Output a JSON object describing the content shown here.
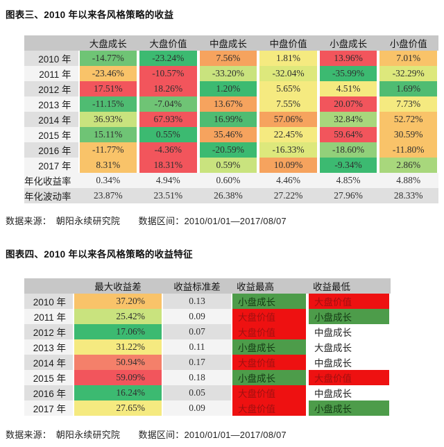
{
  "palette": {
    "red": "#f2555c",
    "salmon": "#f4806a",
    "orange": "#f6a35e",
    "lightOrange": "#f9c369",
    "yellow": "#f5ea80",
    "yellowGreen": "#dde87c",
    "limeGreen": "#c9e37e",
    "lightGreen": "#a8d77c",
    "softGreen": "#92d07a",
    "green": "#6fc475",
    "midGreen": "#4fbc72",
    "emerald": "#3cba71",
    "nameGreen": "#4d9c4a",
    "nameRed": "#ee1111",
    "nameGreenText": "#143a14",
    "nameRedText": "#a01010",
    "headerGray": "#c7c7c7",
    "stripeDark": "#dfdfdf",
    "stripeLight": "#f4f4f4",
    "plainWhite": "#ffffff"
  },
  "table1": {
    "title": "图表三、2010 年以来各风格策略的收益",
    "columns": [
      "大盘成长",
      "大盘价值",
      "中盘成长",
      "中盘价值",
      "小盘成长",
      "小盘价值"
    ],
    "rows": [
      {
        "label": "2010 年",
        "stripe": "dark",
        "cells": [
          {
            "v": "-14.77%",
            "c": "green"
          },
          {
            "v": "-23.24%",
            "c": "emerald"
          },
          {
            "v": "7.56%",
            "c": "orange"
          },
          {
            "v": "1.81%",
            "c": "yellow"
          },
          {
            "v": "13.96%",
            "c": "red"
          },
          {
            "v": "7.01%",
            "c": "lightOrange"
          }
        ]
      },
      {
        "label": "2011 年",
        "stripe": "light",
        "cells": [
          {
            "v": "-23.46%",
            "c": "lightOrange"
          },
          {
            "v": "-10.57%",
            "c": "red"
          },
          {
            "v": "-33.20%",
            "c": "limeGreen"
          },
          {
            "v": "-32.04%",
            "c": "yellowGreen"
          },
          {
            "v": "-35.99%",
            "c": "emerald"
          },
          {
            "v": "-32.29%",
            "c": "yellowGreen"
          }
        ]
      },
      {
        "label": "2012 年",
        "stripe": "dark",
        "cells": [
          {
            "v": "17.51%",
            "c": "red"
          },
          {
            "v": "18.26%",
            "c": "red"
          },
          {
            "v": "1.20%",
            "c": "emerald"
          },
          {
            "v": "5.65%",
            "c": "yellow"
          },
          {
            "v": "4.51%",
            "c": "yellow"
          },
          {
            "v": "1.69%",
            "c": "midGreen"
          }
        ]
      },
      {
        "label": "2013 年",
        "stripe": "light",
        "cells": [
          {
            "v": "-11.15%",
            "c": "midGreen"
          },
          {
            "v": "-7.04%",
            "c": "green"
          },
          {
            "v": "13.67%",
            "c": "orange"
          },
          {
            "v": "7.55%",
            "c": "yellow"
          },
          {
            "v": "20.07%",
            "c": "red"
          },
          {
            "v": "7.73%",
            "c": "yellow"
          }
        ]
      },
      {
        "label": "2014 年",
        "stripe": "dark",
        "cells": [
          {
            "v": "36.93%",
            "c": "limeGreen"
          },
          {
            "v": "67.93%",
            "c": "red"
          },
          {
            "v": "16.99%",
            "c": "midGreen"
          },
          {
            "v": "57.06%",
            "c": "orange"
          },
          {
            "v": "32.84%",
            "c": "lightGreen"
          },
          {
            "v": "52.72%",
            "c": "lightOrange"
          }
        ]
      },
      {
        "label": "2015 年",
        "stripe": "light",
        "cells": [
          {
            "v": "15.11%",
            "c": "green"
          },
          {
            "v": "0.55%",
            "c": "emerald"
          },
          {
            "v": "35.46%",
            "c": "orange"
          },
          {
            "v": "22.45%",
            "c": "yellow"
          },
          {
            "v": "59.64%",
            "c": "red"
          },
          {
            "v": "30.59%",
            "c": "lightOrange"
          }
        ]
      },
      {
        "label": "2016 年",
        "stripe": "dark",
        "cells": [
          {
            "v": "-11.77%",
            "c": "lightOrange"
          },
          {
            "v": "-4.36%",
            "c": "red"
          },
          {
            "v": "-20.59%",
            "c": "emerald"
          },
          {
            "v": "-16.33%",
            "c": "yellowGreen"
          },
          {
            "v": "-18.60%",
            "c": "softGreen"
          },
          {
            "v": "-11.80%",
            "c": "lightOrange"
          }
        ]
      },
      {
        "label": "2017 年",
        "stripe": "light",
        "cells": [
          {
            "v": "8.31%",
            "c": "lightOrange"
          },
          {
            "v": "18.31%",
            "c": "red"
          },
          {
            "v": "0.59%",
            "c": "limeGreen"
          },
          {
            "v": "10.09%",
            "c": "orange"
          },
          {
            "v": "-9.34%",
            "c": "emerald"
          },
          {
            "v": "2.86%",
            "c": "lightGreen"
          }
        ]
      },
      {
        "label": "年化收益率",
        "stripe": "light",
        "cells": [
          {
            "v": "0.34%",
            "c": "none"
          },
          {
            "v": "4.94%",
            "c": "none"
          },
          {
            "v": "0.60%",
            "c": "none"
          },
          {
            "v": "4.46%",
            "c": "none"
          },
          {
            "v": "4.85%",
            "c": "none"
          },
          {
            "v": "4.88%",
            "c": "none"
          }
        ]
      },
      {
        "label": "年化波动率",
        "stripe": "dark",
        "cells": [
          {
            "v": "23.87%",
            "c": "none"
          },
          {
            "v": "23.51%",
            "c": "none"
          },
          {
            "v": "26.38%",
            "c": "none"
          },
          {
            "v": "27.22%",
            "c": "none"
          },
          {
            "v": "27.96%",
            "c": "none"
          },
          {
            "v": "28.33%",
            "c": "none"
          }
        ]
      }
    ],
    "source": "数据来源：　朝阳永续研究院　　数据区间：2010/01/01—2017/08/07"
  },
  "table2": {
    "title": "图表四、2010 年以来各风格策略的收益特征",
    "columns": [
      "最大收益差",
      "收益标准差",
      "收益最高",
      "收益最低"
    ],
    "rows": [
      {
        "label": "2010 年",
        "stripe": "dark",
        "max_diff": {
          "v": "37.20%",
          "c": "lightOrange"
        },
        "std": "0.13",
        "highest": {
          "v": "小盘成长",
          "c": "nameGreen"
        },
        "lowest": {
          "v": "大盘价值",
          "c": "nameRed"
        }
      },
      {
        "label": "2011 年",
        "stripe": "light",
        "max_diff": {
          "v": "25.42%",
          "c": "limeGreen"
        },
        "std": "0.09",
        "highest": {
          "v": "大盘价值",
          "c": "nameRed"
        },
        "lowest": {
          "v": "小盘成长",
          "c": "nameGreen"
        }
      },
      {
        "label": "2012 年",
        "stripe": "dark",
        "max_diff": {
          "v": "17.06%",
          "c": "emerald"
        },
        "std": "0.07",
        "highest": {
          "v": "大盘价值",
          "c": "nameRed"
        },
        "lowest": {
          "v": "中盘成长",
          "c": "none"
        }
      },
      {
        "label": "2013 年",
        "stripe": "light",
        "max_diff": {
          "v": "31.22%",
          "c": "yellow"
        },
        "std": "0.11",
        "highest": {
          "v": "小盘成长",
          "c": "nameGreen"
        },
        "lowest": {
          "v": "大盘成长",
          "c": "none"
        }
      },
      {
        "label": "2014 年",
        "stripe": "dark",
        "max_diff": {
          "v": "50.94%",
          "c": "salmon"
        },
        "std": "0.17",
        "highest": {
          "v": "大盘价值",
          "c": "nameRed"
        },
        "lowest": {
          "v": "中盘成长",
          "c": "none"
        }
      },
      {
        "label": "2015 年",
        "stripe": "light",
        "max_diff": {
          "v": "59.09%",
          "c": "red"
        },
        "std": "0.18",
        "highest": {
          "v": "小盘成长",
          "c": "nameGreen"
        },
        "lowest": {
          "v": "大盘价值",
          "c": "nameRed"
        }
      },
      {
        "label": "2016 年",
        "stripe": "dark",
        "max_diff": {
          "v": "16.24%",
          "c": "emerald"
        },
        "std": "0.05",
        "highest": {
          "v": "大盘价值",
          "c": "nameRed"
        },
        "lowest": {
          "v": "中盘成长",
          "c": "none"
        }
      },
      {
        "label": "2017 年",
        "stripe": "light",
        "max_diff": {
          "v": "27.65%",
          "c": "yellow"
        },
        "std": "0.09",
        "highest": {
          "v": "大盘价值",
          "c": "nameRed"
        },
        "lowest": {
          "v": "小盘成长",
          "c": "nameGreen"
        }
      }
    ],
    "source": "数据来源：　朝阳永续研究院　　数据区间：2010/01/01—2017/08/07"
  }
}
